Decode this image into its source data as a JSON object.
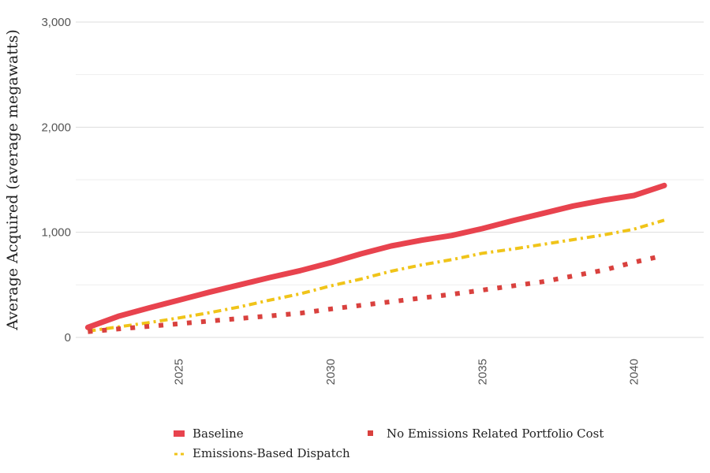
{
  "chart_data": {
    "type": "line",
    "title": "",
    "xlabel": "",
    "ylabel": "Average Acquired (average megawatts)",
    "xlim": [
      2021.6,
      2042.3
    ],
    "ylim": [
      0,
      3000
    ],
    "grid": true,
    "legend_position": "bottom",
    "x_ticks": [
      2025,
      2030,
      2035,
      2040
    ],
    "x_tick_labels": [
      "2025",
      "2030",
      "2035",
      "2040"
    ],
    "y_ticks": [
      0,
      1000,
      2000,
      3000
    ],
    "y_tick_labels": [
      "0",
      "1,000",
      "2,000",
      "3,000"
    ],
    "x": [
      2022,
      2023,
      2024,
      2025,
      2026,
      2027,
      2028,
      2029,
      2030,
      2031,
      2032,
      2033,
      2034,
      2035,
      2036,
      2037,
      2038,
      2039,
      2040,
      2041
    ],
    "series": [
      {
        "name": "Baseline",
        "color": "#e8434e",
        "dash": "solid",
        "values": [
          95,
          200,
          280,
          355,
          430,
          500,
          570,
          635,
          710,
          795,
          870,
          925,
          970,
          1035,
          1110,
          1180,
          1250,
          1305,
          1350,
          1445
        ]
      },
      {
        "name": "Emissions-Based Dispatch",
        "color": "#f0c419",
        "dash": "dashdot",
        "values": [
          60,
          100,
          140,
          185,
          235,
          290,
          355,
          415,
          490,
          555,
          630,
          690,
          740,
          800,
          840,
          885,
          930,
          975,
          1030,
          1115
        ]
      },
      {
        "name": "No Emissions Related Portfolio Cost",
        "color": "#d9413e",
        "dash": "dotted",
        "values": [
          55,
          80,
          105,
          130,
          155,
          180,
          205,
          230,
          270,
          305,
          340,
          375,
          410,
          450,
          490,
          530,
          585,
          640,
          715,
          780
        ]
      }
    ]
  }
}
